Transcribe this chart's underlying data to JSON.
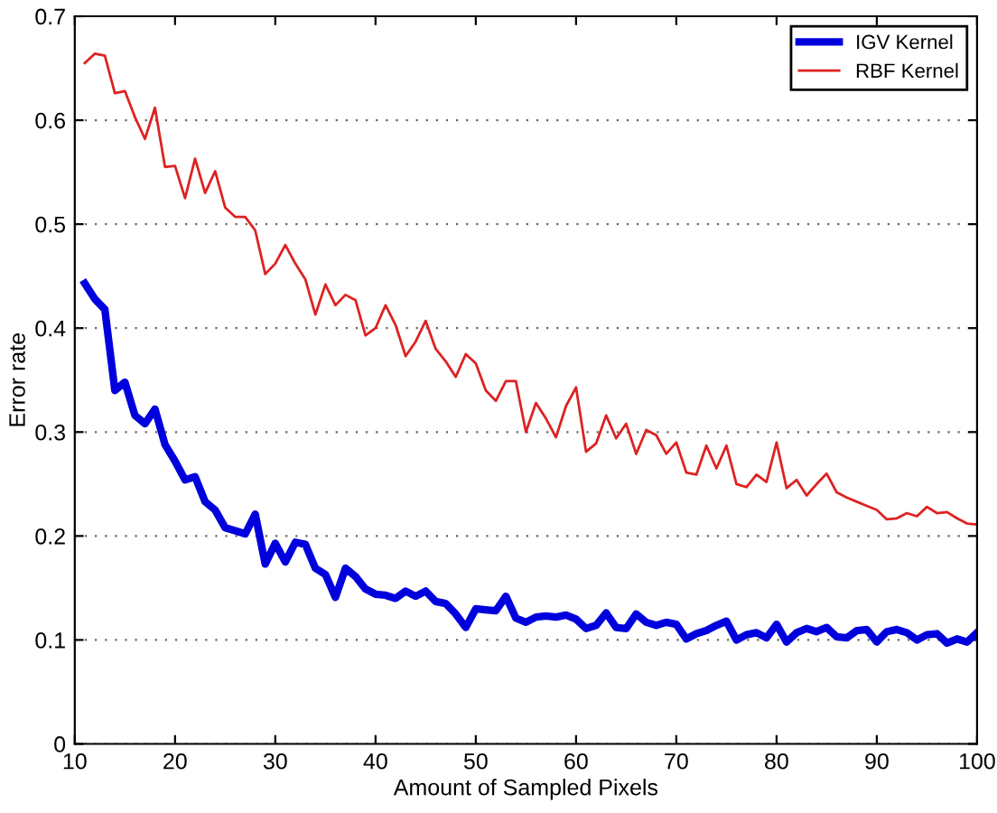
{
  "chart_data": {
    "type": "line",
    "xlabel": "Amount of Sampled Pixels",
    "ylabel": "Error rate",
    "x": [
      11,
      12,
      13,
      14,
      15,
      16,
      17,
      18,
      19,
      20,
      21,
      22,
      23,
      24,
      25,
      26,
      27,
      28,
      29,
      30,
      31,
      32,
      33,
      34,
      35,
      36,
      37,
      38,
      39,
      40,
      41,
      42,
      43,
      44,
      45,
      46,
      47,
      48,
      49,
      50,
      51,
      52,
      53,
      54,
      55,
      56,
      57,
      58,
      59,
      60,
      61,
      62,
      63,
      64,
      65,
      66,
      67,
      68,
      69,
      70,
      71,
      72,
      73,
      74,
      75,
      76,
      77,
      78,
      79,
      80,
      81,
      82,
      83,
      84,
      85,
      86,
      87,
      88,
      89,
      90,
      91,
      92,
      93,
      94,
      95,
      96,
      97,
      98,
      99,
      100
    ],
    "series": [
      {
        "name": "IGV Kernel",
        "color": "#0000dd",
        "values": [
          0.443,
          0.428,
          0.418,
          0.34,
          0.348,
          0.316,
          0.308,
          0.322,
          0.288,
          0.272,
          0.254,
          0.257,
          0.233,
          0.225,
          0.208,
          0.205,
          0.202,
          0.221,
          0.173,
          0.193,
          0.175,
          0.194,
          0.192,
          0.169,
          0.163,
          0.141,
          0.169,
          0.161,
          0.149,
          0.144,
          0.143,
          0.14,
          0.147,
          0.142,
          0.147,
          0.137,
          0.135,
          0.125,
          0.112,
          0.13,
          0.129,
          0.128,
          0.142,
          0.121,
          0.117,
          0.122,
          0.123,
          0.122,
          0.124,
          0.12,
          0.111,
          0.114,
          0.126,
          0.112,
          0.111,
          0.125,
          0.117,
          0.114,
          0.117,
          0.115,
          0.101,
          0.106,
          0.109,
          0.114,
          0.118,
          0.1,
          0.105,
          0.107,
          0.102,
          0.115,
          0.098,
          0.107,
          0.111,
          0.108,
          0.112,
          0.103,
          0.102,
          0.109,
          0.11,
          0.098,
          0.108,
          0.11,
          0.107,
          0.1,
          0.105,
          0.106,
          0.097,
          0.101,
          0.098,
          0.107
        ]
      },
      {
        "name": "RBF Kernel",
        "color": "#dd2222",
        "values": [
          0.655,
          0.664,
          0.662,
          0.626,
          0.628,
          0.603,
          0.582,
          0.612,
          0.555,
          0.556,
          0.525,
          0.563,
          0.53,
          0.551,
          0.516,
          0.507,
          0.507,
          0.494,
          0.452,
          0.462,
          0.48,
          0.462,
          0.447,
          0.413,
          0.442,
          0.422,
          0.432,
          0.427,
          0.393,
          0.4,
          0.422,
          0.403,
          0.373,
          0.387,
          0.407,
          0.38,
          0.368,
          0.353,
          0.375,
          0.366,
          0.34,
          0.33,
          0.349,
          0.349,
          0.3,
          0.328,
          0.313,
          0.295,
          0.325,
          0.343,
          0.281,
          0.289,
          0.316,
          0.294,
          0.308,
          0.279,
          0.302,
          0.297,
          0.279,
          0.29,
          0.261,
          0.259,
          0.287,
          0.265,
          0.287,
          0.25,
          0.247,
          0.259,
          0.252,
          0.29,
          0.246,
          0.254,
          0.239,
          0.25,
          0.26,
          0.242,
          0.237,
          0.233,
          0.229,
          0.225,
          0.216,
          0.217,
          0.222,
          0.219,
          0.228,
          0.222,
          0.223,
          0.217,
          0.212,
          0.211
        ]
      }
    ],
    "xlim": [
      10,
      100
    ],
    "ylim": [
      0,
      0.7
    ],
    "xticks": [
      10,
      20,
      30,
      40,
      50,
      60,
      70,
      80,
      90,
      100
    ],
    "yticks": [
      0,
      0.1,
      0.2,
      0.3,
      0.4,
      0.5,
      0.6,
      0.7
    ],
    "grid": "y",
    "legend": "top right"
  }
}
